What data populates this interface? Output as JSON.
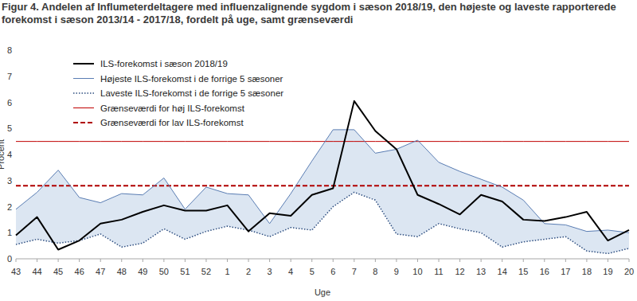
{
  "chart_data": {
    "type": "line",
    "title": "Figur 4. Andelen af Influmeterdeltagere med influenzalignende sygdom i sæson 2018/19, den højeste og laveste rapporterede forekomst i sæson 2013/14 - 2017/18, fordelt på uge, samt grænseværdi",
    "x_label": "Uge",
    "y_label": "Procent",
    "categories": [
      "43",
      "44",
      "45",
      "46",
      "47",
      "48",
      "49",
      "50",
      "51",
      "52",
      "1",
      "2",
      "3",
      "4",
      "5",
      "6",
      "7",
      "8",
      "9",
      "10",
      "11",
      "12",
      "13",
      "14",
      "15",
      "16",
      "17",
      "18",
      "19",
      "20"
    ],
    "ylim": [
      0,
      8
    ],
    "yticks": [
      0,
      1,
      2,
      3,
      4,
      5,
      6,
      7,
      8
    ],
    "grid": false,
    "legend": "upper left",
    "series": [
      {
        "name": "ILS-forekomst i sæson 2018/19",
        "color": "#000000",
        "line_style": "solid",
        "values": [
          0.9,
          1.6,
          0.35,
          0.7,
          1.35,
          1.5,
          1.8,
          2.05,
          1.85,
          1.85,
          2.05,
          1.05,
          1.75,
          1.65,
          2.45,
          2.7,
          6.05,
          4.9,
          4.2,
          2.45,
          2.1,
          1.7,
          2.45,
          2.2,
          1.5,
          1.45,
          1.6,
          1.8,
          0.7,
          1.1
        ]
      },
      {
        "name": "Højeste ILS-forekomst i de forrige 5 sæsoner",
        "color": "#5a7db3",
        "line_style": "solid",
        "values": [
          1.9,
          2.55,
          3.4,
          2.35,
          2.15,
          2.5,
          2.45,
          3.1,
          1.9,
          2.75,
          2.5,
          2.45,
          1.35,
          2.5,
          3.75,
          4.95,
          4.95,
          4.05,
          4.2,
          4.55,
          3.7,
          3.35,
          3.05,
          2.75,
          2.25,
          1.35,
          1.3,
          1.05,
          1.1,
          1.0
        ]
      },
      {
        "name": "Laveste ILS-forekomst i de forrige 5 sæsoner",
        "color": "#2f4f80",
        "line_style": "dotted",
        "values": [
          0.55,
          0.75,
          0.6,
          0.7,
          0.95,
          0.45,
          0.6,
          1.15,
          0.75,
          1.05,
          1.25,
          1.1,
          0.85,
          1.2,
          1.1,
          2.0,
          2.55,
          2.25,
          0.95,
          0.85,
          1.35,
          1.15,
          1.0,
          0.45,
          0.65,
          0.75,
          0.85,
          0.3,
          0.2,
          0.4
        ]
      },
      {
        "name": "Grænseværdi for høj ILS-forekomst",
        "color": "#c00000",
        "line_style": "solid",
        "values": [
          4.5,
          4.5,
          4.5,
          4.5,
          4.5,
          4.5,
          4.5,
          4.5,
          4.5,
          4.5,
          4.5,
          4.5,
          4.5,
          4.5,
          4.5,
          4.5,
          4.5,
          4.5,
          4.5,
          4.5,
          4.5,
          4.5,
          4.5,
          4.5,
          4.5,
          4.5,
          4.5,
          4.5,
          4.5,
          4.5
        ]
      },
      {
        "name": "Grænseværdi for lav ILS-forekomst",
        "color": "#b00000",
        "line_style": "dashed",
        "values": [
          2.8,
          2.8,
          2.8,
          2.8,
          2.8,
          2.8,
          2.8,
          2.8,
          2.8,
          2.8,
          2.8,
          2.8,
          2.8,
          2.8,
          2.8,
          2.8,
          2.8,
          2.8,
          2.8,
          2.8,
          2.8,
          2.8,
          2.8,
          2.8,
          2.8,
          2.8,
          2.8,
          2.8,
          2.8,
          2.8
        ]
      }
    ]
  }
}
